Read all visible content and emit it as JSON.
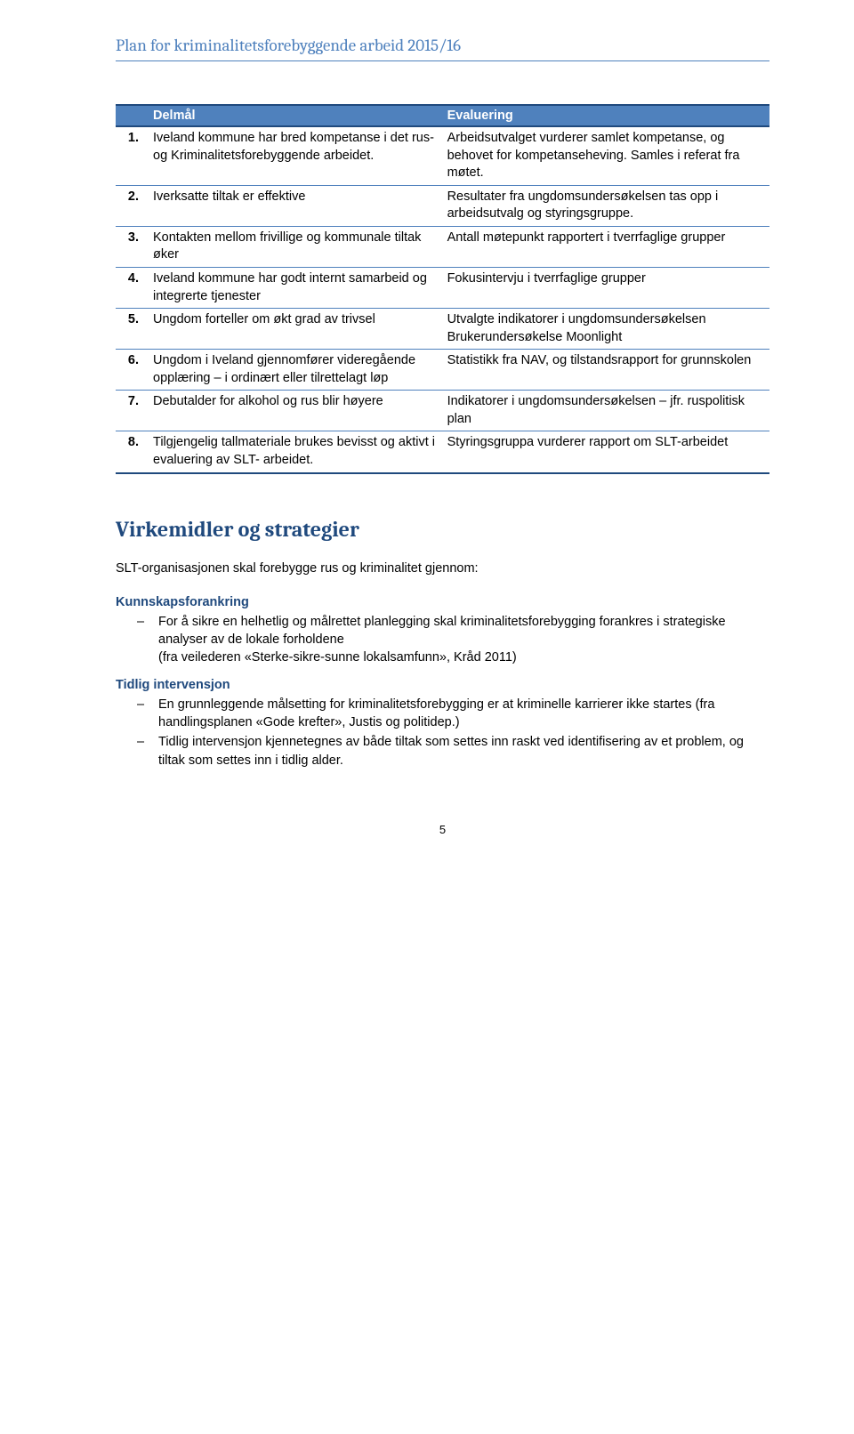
{
  "header": {
    "title": "Plan for kriminalitetsforebyggende arbeid 2015/16"
  },
  "table": {
    "headers": {
      "col1": "",
      "col2": "Delmål",
      "col3": "Evaluering"
    },
    "rows": [
      {
        "num": "1.",
        "goal": "Iveland kommune har bred kompetanse i det rus- og Kriminalitetsforebyggende arbeidet.",
        "eval": "Arbeidsutvalget vurderer samlet kompetanse, og behovet for kompetanseheving. Samles i referat fra møtet."
      },
      {
        "num": "2.",
        "goal": "Iverksatte tiltak er effektive",
        "eval": "Resultater fra ungdomsundersøkelsen tas opp i arbeidsutvalg og styringsgruppe."
      },
      {
        "num": "3.",
        "goal": "Kontakten mellom frivillige og kommunale tiltak øker",
        "eval": "Antall møtepunkt rapportert i tverrfaglige grupper"
      },
      {
        "num": "4.",
        "goal": "Iveland kommune har godt internt samarbeid og integrerte tjenester",
        "eval": "Fokusintervju i tverrfaglige grupper"
      },
      {
        "num": "5.",
        "goal": "Ungdom forteller om økt grad av trivsel",
        "eval": "Utvalgte indikatorer i ungdomsundersøkelsen Brukerundersøkelse Moonlight"
      },
      {
        "num": "6.",
        "goal": "Ungdom i Iveland gjennomfører videregående opplæring – i ordinært eller tilrettelagt løp",
        "eval": "Statistikk fra NAV, og tilstandsrapport for grunnskolen"
      },
      {
        "num": "7.",
        "goal": "Debutalder for alkohol og rus blir høyere",
        "eval": "Indikatorer i ungdomsundersøkelsen – jfr. ruspolitisk plan"
      },
      {
        "num": "8.",
        "goal": "Tilgjengelig tallmateriale brukes bevisst og aktivt i evaluering av SLT- arbeidet.",
        "eval": "Styringsgruppa vurderer rapport om SLT-arbeidet"
      }
    ]
  },
  "section": {
    "title": "Virkemidler og strategier",
    "intro": "SLT-organisasjonen skal forebygge rus og kriminalitet gjennom:",
    "blocks": [
      {
        "heading": "Kunnskapsforankring",
        "items": [
          "For å sikre en helhetlig og målrettet planlegging skal kriminalitetsforebygging forankres i strategiske analyser av de lokale forholdene\n(fra veilederen «Sterke-sikre-sunne lokalsamfunn», Kråd 2011)"
        ]
      },
      {
        "heading": "Tidlig intervensjon",
        "items": [
          "En grunnleggende målsetting for kriminalitetsforebygging er at kriminelle karrierer ikke startes (fra handlingsplanen «Gode krefter», Justis og politidep.)",
          "Tidlig intervensjon kjennetegnes av både tiltak som settes inn raskt ved identifisering av et problem, og tiltak som settes inn i tidlig alder."
        ]
      }
    ]
  },
  "page_number": "5"
}
